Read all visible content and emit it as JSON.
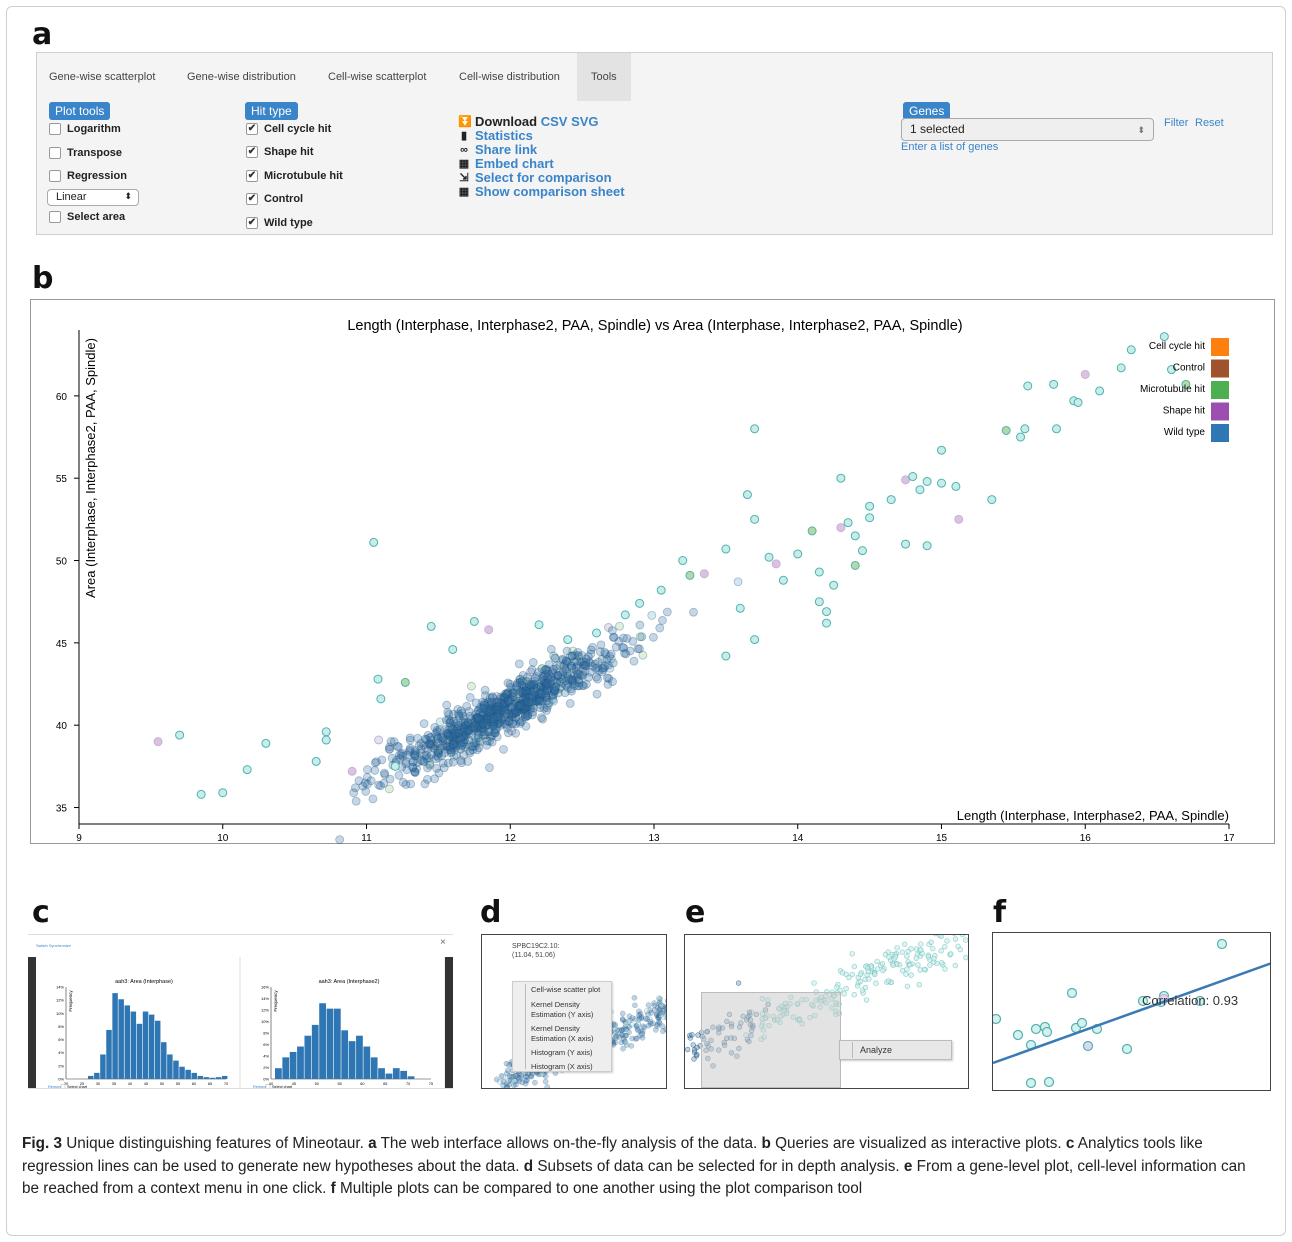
{
  "panel_labels": {
    "a": "a",
    "b": "b",
    "c": "c",
    "d": "d",
    "e": "e",
    "f": "f"
  },
  "panel_a": {
    "tabs": [
      "Gene-wise scatterplot",
      "Gene-wise distribution",
      "Cell-wise scatterplot",
      "Cell-wise distribution",
      "Tools"
    ],
    "plot_tools": {
      "label": "Plot tools",
      "items": [
        "Logarithm",
        "Transpose",
        "Regression"
      ],
      "scale_select": "Linear",
      "select_area": "Select area"
    },
    "hit_type": {
      "label": "Hit type",
      "items": [
        "Cell cycle hit",
        "Shape hit",
        "Microtubule hit",
        "Control",
        "Wild type"
      ]
    },
    "actions": {
      "download": "Download",
      "csv": "CSV",
      "svg": "SVG",
      "statistics": "Statistics",
      "share": "Share link",
      "embed": "Embed chart",
      "select_comparison": "Select for comparison",
      "show_comparison": "Show comparison sheet"
    },
    "genes": {
      "label": "Genes",
      "select_value": "1 selected",
      "filter": "Filter",
      "reset": "Reset",
      "enter_list": "Enter a list of genes"
    }
  },
  "chart_data": {
    "type": "scatter",
    "title": "Length (Interphase, Interphase2, PAA, Spindle) vs Area (Interphase, Interphase2, PAA, Spindle)",
    "xlabel": "Length (Interphase, Interphase2, PAA, Spindle)",
    "ylabel": "Area (Interphase, Interphase2, PAA, Spindle)",
    "xlim": [
      9,
      17
    ],
    "ylim": [
      34,
      64
    ],
    "xticks": [
      9,
      10,
      11,
      12,
      13,
      14,
      15,
      16,
      17
    ],
    "yticks": [
      35,
      40,
      45,
      50,
      55,
      60
    ],
    "legend_position": "top-right",
    "legend": [
      {
        "name": "Cell cycle hit",
        "color": "#ff7f0e"
      },
      {
        "name": "Control",
        "color": "#a0522d"
      },
      {
        "name": "Microtubule hit",
        "color": "#4caf50"
      },
      {
        "name": "Shape hit",
        "color": "#9c4fb0"
      },
      {
        "name": "Wild type",
        "color": "#2f77b4"
      }
    ],
    "outlier_points": [
      [
        9.55,
        39.0
      ],
      [
        9.7,
        39.4
      ],
      [
        9.85,
        35.8
      ],
      [
        10.0,
        35.9
      ],
      [
        10.17,
        37.3
      ],
      [
        10.3,
        38.9
      ],
      [
        10.65,
        37.8
      ],
      [
        10.72,
        39.1
      ],
      [
        10.72,
        39.6
      ],
      [
        10.9,
        37.2
      ],
      [
        11.05,
        51.1
      ],
      [
        11.08,
        42.8
      ],
      [
        11.1,
        41.6
      ],
      [
        11.27,
        42.6
      ],
      [
        11.45,
        46.0
      ],
      [
        11.6,
        44.6
      ],
      [
        11.2,
        37.5
      ],
      [
        11.75,
        46.3
      ],
      [
        11.85,
        45.8
      ],
      [
        12.2,
        46.1
      ],
      [
        12.4,
        45.2
      ],
      [
        12.6,
        45.6
      ],
      [
        12.8,
        46.7
      ],
      [
        12.9,
        47.4
      ],
      [
        13.05,
        48.2
      ],
      [
        13.2,
        50.0
      ],
      [
        13.25,
        49.1
      ],
      [
        13.35,
        49.2
      ],
      [
        13.5,
        50.7
      ],
      [
        13.6,
        47.1
      ],
      [
        13.7,
        58.0
      ],
      [
        13.65,
        54.0
      ],
      [
        13.7,
        52.5
      ],
      [
        13.5,
        44.2
      ],
      [
        13.7,
        45.2
      ],
      [
        13.8,
        50.2
      ],
      [
        13.85,
        49.8
      ],
      [
        13.9,
        48.8
      ],
      [
        14.0,
        50.4
      ],
      [
        14.1,
        51.8
      ],
      [
        14.15,
        49.3
      ],
      [
        14.15,
        47.5
      ],
      [
        14.2,
        46.9
      ],
      [
        14.2,
        46.2
      ],
      [
        14.25,
        48.5
      ],
      [
        14.3,
        52.0
      ],
      [
        14.35,
        52.3
      ],
      [
        14.4,
        51.5
      ],
      [
        14.45,
        50.6
      ],
      [
        14.5,
        52.6
      ],
      [
        14.5,
        53.3
      ],
      [
        14.3,
        55.0
      ],
      [
        14.4,
        49.7
      ],
      [
        14.65,
        53.7
      ],
      [
        14.75,
        54.9
      ],
      [
        14.8,
        55.1
      ],
      [
        14.85,
        54.3
      ],
      [
        14.9,
        54.8
      ],
      [
        14.75,
        51.0
      ],
      [
        14.9,
        50.9
      ],
      [
        15.0,
        56.7
      ],
      [
        15.0,
        54.7
      ],
      [
        15.1,
        54.5
      ],
      [
        15.12,
        52.5
      ],
      [
        15.35,
        53.7
      ],
      [
        15.45,
        57.9
      ],
      [
        15.58,
        58.0
      ],
      [
        15.55,
        57.5
      ],
      [
        15.6,
        60.6
      ],
      [
        15.78,
        60.7
      ],
      [
        15.8,
        58.0
      ],
      [
        15.92,
        59.7
      ],
      [
        16.0,
        61.3
      ],
      [
        16.1,
        60.3
      ],
      [
        16.25,
        61.7
      ],
      [
        16.32,
        62.8
      ],
      [
        16.55,
        63.6
      ],
      [
        16.6,
        61.6
      ],
      [
        16.7,
        60.7
      ],
      [
        15.95,
        59.6
      ]
    ]
  },
  "panel_c": {
    "header_link": "Switch Synchronize",
    "close": "×",
    "chart_data": [
      {
        "type": "bar",
        "title": "aah3: Area (Interphase)",
        "ylabel": "Frequency",
        "xtick": [
          "20",
          "25",
          "30",
          "35",
          "40",
          "45",
          "50",
          "55",
          "60",
          "65",
          "70"
        ],
        "values": [
          0.5,
          1,
          4,
          8,
          14,
          13,
          12,
          11,
          9,
          11,
          10.5,
          9.5,
          6,
          4,
          3,
          2,
          1.5,
          1,
          0.5,
          0.3,
          0.2,
          0.3,
          0.5
        ],
        "footer": "Remove",
        "footer2": "Select chart"
      },
      {
        "type": "bar",
        "title": "aah3: Area (Interphase2)",
        "ylabel": "Frequency",
        "xtick": [
          "40",
          "45",
          "50",
          "55",
          "60",
          "65",
          "70",
          "75"
        ],
        "values": [
          2,
          4,
          5,
          6,
          8,
          10,
          14,
          13,
          13,
          9,
          7,
          8,
          6,
          4,
          2,
          1,
          2,
          1.5,
          0.5
        ],
        "footer": "Remove",
        "footer2": "Select chart"
      }
    ],
    "yticks_c1": [
      "14%",
      "12%",
      "10%",
      "8%",
      "6%",
      "4%",
      "2%",
      "0%"
    ],
    "yticks_c2": [
      "16%",
      "14%",
      "12%",
      "10%",
      "8%",
      "6%",
      "4%",
      "2%",
      "0%"
    ]
  },
  "panel_d": {
    "tooltip_name": "SPBC19C2.10:",
    "tooltip_values": "(11.04, 51.06)",
    "menu": [
      "Cell-wise scatter plot",
      "Kernel Density Estimation (Y axis)",
      "Kernel Density Estimation (X axis)",
      "Histogram (Y axis)",
      "Histogram (X axis)"
    ]
  },
  "panel_e": {
    "analyze": "Analyze"
  },
  "panel_f": {
    "correlation": "Correlation: 0.93"
  },
  "caption": {
    "fig": "Fig. 3",
    "text1": " Unique distinguishing features of Mineotaur. ",
    "a": "a",
    "text_a": " The web interface allows on-the-fly analysis of the data. ",
    "b": "b",
    "text_b": " Queries are visualized as interactive plots. ",
    "c": "c",
    "text_c": " Analytics tools like regression lines can be used to generate new hypotheses about the data. ",
    "d": "d",
    "text_d": " Subsets of data can be selected for in depth analysis. ",
    "e": "e",
    "text_e": " From a gene-level plot, cell-level information can be reached from a context menu in one click. ",
    "f": "f",
    "text_f": " Multiple plots can be compared to one another using the plot comparison tool"
  }
}
